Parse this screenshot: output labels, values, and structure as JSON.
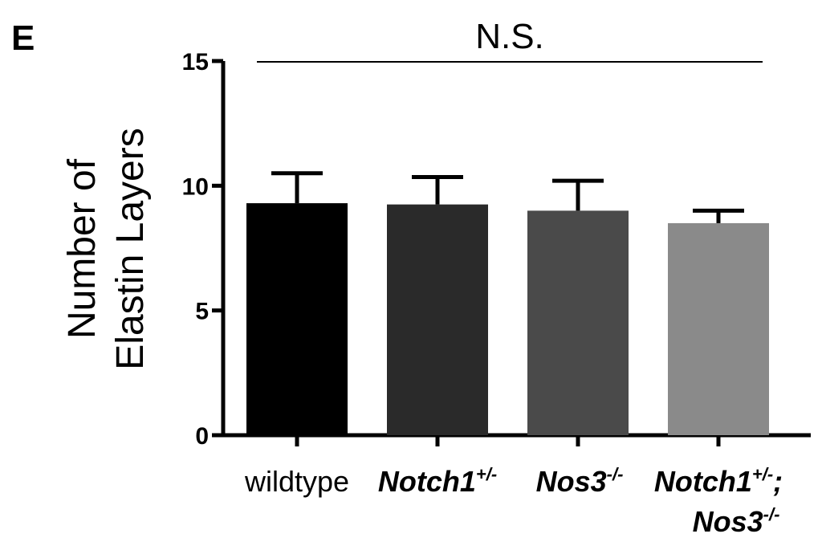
{
  "panel_label": "E",
  "chart_data": {
    "type": "bar",
    "ylabel_lines": [
      "Number of",
      "Elastin Layers"
    ],
    "ylim": [
      0,
      15
    ],
    "yticks": [
      0,
      5,
      10,
      15
    ],
    "categories": [
      {
        "label_parts": [
          {
            "text": "wildtype",
            "style": "normal"
          }
        ]
      },
      {
        "label_parts": [
          {
            "text": "Notch1",
            "style": "italic"
          },
          {
            "text": "+/-",
            "style": "sup"
          }
        ]
      },
      {
        "label_parts": [
          {
            "text": "Nos3",
            "style": "italic"
          },
          {
            "text": "-/-",
            "style": "sup"
          }
        ]
      },
      {
        "label_parts": [
          {
            "text": "Notch1",
            "style": "italic"
          },
          {
            "text": "+/-",
            "style": "sup"
          },
          {
            "text": ";",
            "style": "italic"
          }
        ],
        "label_parts_line2": [
          {
            "text": "Nos3",
            "style": "italic"
          },
          {
            "text": "-/-",
            "style": "sup"
          }
        ]
      }
    ],
    "values": [
      9.3,
      9.25,
      9.0,
      8.5
    ],
    "errors": [
      1.2,
      1.1,
      1.2,
      0.5
    ],
    "colors": [
      "#000000",
      "#2a2a2a",
      "#4a4a4a",
      "#8a8a8a"
    ],
    "significance": {
      "label": "N.S."
    }
  }
}
